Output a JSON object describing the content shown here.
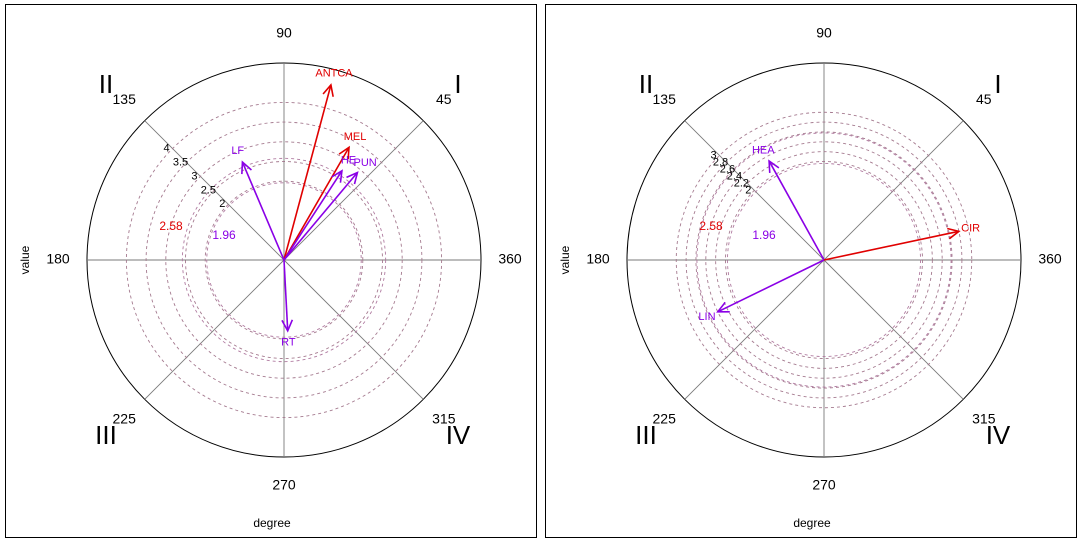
{
  "chart_data": [
    {
      "type": "polar-vector",
      "xlabel": "degree",
      "ylabel": "value",
      "angle_labels": [
        "90",
        "45",
        "360",
        "315",
        "270",
        "225",
        "180",
        "135"
      ],
      "quadrant_labels": [
        "I",
        "II",
        "III",
        "IV"
      ],
      "radial_max": 5,
      "circle_labels": [
        {
          "label": "4",
          "r": 4.0
        },
        {
          "label": "3.5",
          "r": 3.5
        },
        {
          "label": "3",
          "r": 3.0
        },
        {
          "label": "2.5",
          "r": 2.5
        },
        {
          "label": "2",
          "r": 2.0
        }
      ],
      "significance_labels": [
        {
          "label": "2.58",
          "r": 2.58,
          "color": "#e00000"
        },
        {
          "label": "1.96",
          "r": 1.96,
          "color": "#8a00e6"
        }
      ],
      "vectors": [
        {
          "label": "ANTCA",
          "angle": 75,
          "length": 4.6,
          "color": "#e00000"
        },
        {
          "label": "MEL",
          "angle": 60,
          "length": 3.3,
          "color": "#e00000"
        },
        {
          "label": "PUN",
          "angle": 50,
          "length": 2.9,
          "color": "#8a00e6"
        },
        {
          "label": "HE",
          "angle": 57,
          "length": 2.7,
          "color": "#8a00e6"
        },
        {
          "label": "LF",
          "angle": 113,
          "length": 2.7,
          "color": "#8a00e6"
        },
        {
          "label": "RT",
          "angle": 273,
          "length": 1.8,
          "color": "#8a00e6"
        }
      ]
    },
    {
      "type": "polar-vector",
      "xlabel": "degree",
      "ylabel": "value",
      "angle_labels": [
        "90",
        "45",
        "360",
        "315",
        "270",
        "225",
        "180",
        "135"
      ],
      "quadrant_labels": [
        "I",
        "II",
        "III",
        "IV"
      ],
      "radial_max": 4,
      "circle_labels": [
        {
          "label": "3",
          "r": 3.0
        },
        {
          "label": "2.8",
          "r": 2.8
        },
        {
          "label": "2.6",
          "r": 2.6
        },
        {
          "label": "2.4",
          "r": 2.4
        },
        {
          "label": "2.2",
          "r": 2.2
        },
        {
          "label": "2",
          "r": 2.0
        }
      ],
      "significance_labels": [
        {
          "label": "2.58",
          "r": 2.58,
          "color": "#e00000"
        },
        {
          "label": "1.96",
          "r": 1.96,
          "color": "#8a00e6"
        }
      ],
      "vectors": [
        {
          "label": "HEA",
          "angle": 119,
          "length": 2.3,
          "color": "#8a00e6"
        },
        {
          "label": "CIR",
          "angle": 12,
          "length": 2.8,
          "color": "#e00000"
        },
        {
          "label": "LIN",
          "angle": 206,
          "length": 2.4,
          "color": "#8a00e6"
        }
      ]
    }
  ]
}
